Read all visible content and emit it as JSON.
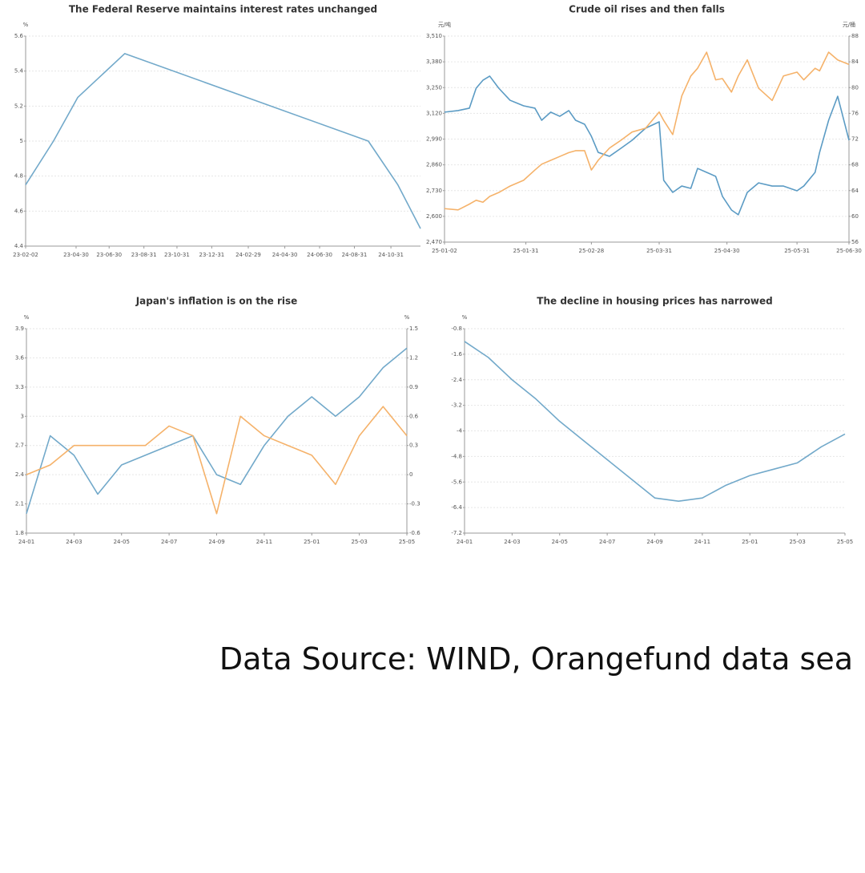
{
  "chart_data": [
    {
      "type": "line",
      "title": "The Federal Reserve maintains interest rates unchanged",
      "y_label": "%",
      "x": [
        0,
        1.6,
        3.0,
        5.7,
        19.7,
        21.4,
        22.7
      ],
      "xlim": [
        0,
        22.7
      ],
      "xticks": [
        {
          "value": 0,
          "label": "23-02-02"
        },
        {
          "value": 2.9,
          "label": "23-04-30"
        },
        {
          "value": 4.8,
          "label": "23-06-30"
        },
        {
          "value": 6.8,
          "label": "23-08-31"
        },
        {
          "value": 8.7,
          "label": "23-10-31"
        },
        {
          "value": 10.7,
          "label": "23-12-31"
        },
        {
          "value": 12.8,
          "label": "24-02-29"
        },
        {
          "value": 14.9,
          "label": "24-04-30"
        },
        {
          "value": 16.9,
          "label": "24-06-30"
        },
        {
          "value": 18.9,
          "label": "24-08-31"
        },
        {
          "value": 21.0,
          "label": "24-10-31"
        }
      ],
      "ylim": [
        4.4,
        5.6
      ],
      "yticks": [
        4.4,
        4.6,
        4.8,
        5,
        5.2,
        5.4,
        5.6
      ],
      "grid": true,
      "series": [
        {
          "color": "#72a9ca",
          "values": [
            4.75,
            5.0,
            5.25,
            5.5,
            5.0,
            4.75,
            4.5
          ]
        }
      ]
    },
    {
      "type": "line",
      "title": "Crude oil rises and then falls",
      "y_label": "元/吨",
      "y2_label": "元/桶",
      "x": [
        0,
        6,
        11,
        14,
        17,
        20,
        24,
        29,
        35,
        40,
        43,
        47,
        51,
        55,
        58,
        62,
        65,
        68,
        73,
        78,
        83,
        89,
        95,
        97,
        101,
        105,
        109,
        112,
        116,
        120,
        123,
        127,
        130,
        134,
        139,
        145,
        150,
        156,
        159,
        164,
        166,
        170,
        174,
        179
      ],
      "xlim": [
        0,
        179
      ],
      "xticks": [
        {
          "value": 0,
          "label": "25-01-02"
        },
        {
          "value": 36,
          "label": "25-01-31"
        },
        {
          "value": 65,
          "label": "25-02-28"
        },
        {
          "value": 95,
          "label": "25-03-31"
        },
        {
          "value": 125,
          "label": "25-04-30"
        },
        {
          "value": 156,
          "label": "25-05-31"
        },
        {
          "value": 179,
          "label": "25-06-30"
        }
      ],
      "ylim": [
        2470,
        3510
      ],
      "yticks": [
        {
          "value": 2470,
          "label": "2,470"
        },
        {
          "value": 2600,
          "label": "2,600"
        },
        {
          "value": 2730,
          "label": "2,730"
        },
        {
          "value": 2860,
          "label": "2,860"
        },
        {
          "value": 2990,
          "label": "2,990"
        },
        {
          "value": 3120,
          "label": "3,120"
        },
        {
          "value": 3250,
          "label": "3,250"
        },
        {
          "value": 3380,
          "label": "3,380"
        },
        {
          "value": 3510,
          "label": "3,510"
        }
      ],
      "y2lim": [
        56,
        88
      ],
      "y2ticks": [
        56,
        60,
        64,
        68,
        72,
        76,
        80,
        84,
        88
      ],
      "grid": true,
      "series": [
        {
          "color": "#5b9bc4",
          "values": [
            3126,
            3134,
            3146,
            3247,
            3287,
            3308,
            3247,
            3186,
            3158,
            3146,
            3085,
            3126,
            3105,
            3134,
            3085,
            3065,
            3004,
            2923,
            2903,
            2943,
            2984,
            3045,
            3077,
            2782,
            2721,
            2753,
            2741,
            2842,
            2822,
            2802,
            2701,
            2632,
            2608,
            2721,
            2769,
            2753,
            2753,
            2729,
            2753,
            2822,
            2923,
            3085,
            3206,
            2984
          ]
        },
        {
          "color": "#f5b26a",
          "axis": "y2",
          "values": [
            61.2,
            61.0,
            61.9,
            62.5,
            62.2,
            63.1,
            63.7,
            64.7,
            65.6,
            67.2,
            68.1,
            68.7,
            69.3,
            69.9,
            70.2,
            70.2,
            67.2,
            68.7,
            70.6,
            71.8,
            73.1,
            73.7,
            76.2,
            74.9,
            72.7,
            78.7,
            81.8,
            83.0,
            85.5,
            81.2,
            81.4,
            79.3,
            81.8,
            84.3,
            79.9,
            78.0,
            81.8,
            82.4,
            81.2,
            83.0,
            82.6,
            85.5,
            84.3,
            83.6
          ]
        }
      ]
    },
    {
      "type": "line",
      "title": "Japan's inflation is on the rise",
      "y_label": "%",
      "y2_label": "%",
      "categories": [
        "24-01",
        null,
        "24-03",
        null,
        "24-05",
        null,
        "24-07",
        null,
        "24-09",
        null,
        "24-11",
        null,
        "25-01",
        null,
        "25-03",
        null,
        "25-05"
      ],
      "ylim": [
        1.8,
        3.9
      ],
      "yticks": [
        1.8,
        2.1,
        2.4,
        2.7,
        3,
        3.3,
        3.6,
        3.9
      ],
      "y2lim": [
        -0.6,
        1.5
      ],
      "y2ticks": [
        -0.6,
        -0.3,
        0,
        0.3,
        0.6,
        0.9,
        1.2,
        1.5
      ],
      "grid": true,
      "series": [
        {
          "color": "#72a9ca",
          "values": [
            2.0,
            2.8,
            2.6,
            2.2,
            2.5,
            2.6,
            2.7,
            2.8,
            2.4,
            2.3,
            2.7,
            3.0,
            3.2,
            3.0,
            3.2,
            3.5,
            3.7
          ]
        },
        {
          "color": "#f5b26a",
          "axis": "y2",
          "values": [
            0.0,
            0.1,
            0.3,
            0.3,
            0.3,
            0.3,
            0.5,
            0.4,
            -0.4,
            0.6,
            0.4,
            0.3,
            0.2,
            -0.1,
            0.4,
            0.7,
            0.4
          ]
        }
      ]
    },
    {
      "type": "line",
      "title": "The decline in housing prices has narrowed",
      "y_label": "%",
      "categories": [
        "24-01",
        null,
        "24-03",
        null,
        "24-05",
        null,
        "24-07",
        null,
        "24-09",
        null,
        "24-11",
        null,
        "25-01",
        null,
        "25-03",
        null,
        "25-05"
      ],
      "ylim": [
        -7.2,
        -0.8
      ],
      "yticks": [
        -7.2,
        -6.4,
        -5.6,
        -4.8,
        -4,
        -3.2,
        -2.4,
        -1.6,
        -0.8
      ],
      "grid": true,
      "series": [
        {
          "color": "#72a9ca",
          "values": [
            -1.2,
            -1.7,
            -2.4,
            -3.0,
            -3.7,
            -4.3,
            -4.9,
            -5.5,
            -6.1,
            -6.2,
            -6.1,
            -5.7,
            -5.4,
            -5.2,
            -5.0,
            -4.5,
            -4.1
          ]
        }
      ]
    }
  ],
  "caption": "Data Source: WIND, Orangefund data sea"
}
